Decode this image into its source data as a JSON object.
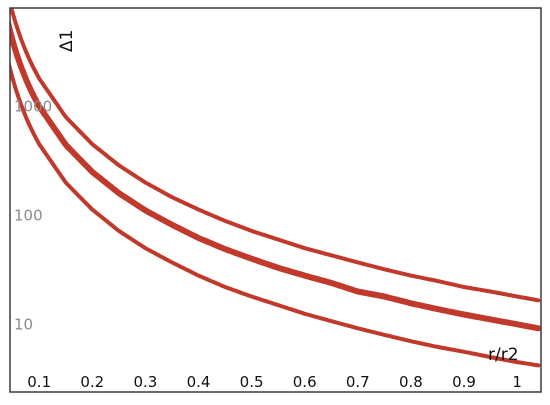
{
  "chart_data": {
    "type": "line",
    "title": "",
    "xlabel": "r/r2",
    "ylabel": "Δ1",
    "xscale": "linear",
    "yscale": "log",
    "xlim": [
      0.045,
      1.045
    ],
    "ylim": [
      3.5,
      8000
    ],
    "xticks": [
      0.1,
      0.2,
      0.3,
      0.4,
      0.5,
      0.6,
      0.7,
      0.8,
      0.9,
      1
    ],
    "xtick_labels": [
      "0.1",
      "0.2",
      "0.3",
      "0.4",
      "0.5",
      "0.6",
      "0.7",
      "0.8",
      "0.9",
      "1"
    ],
    "yticks": [
      10,
      100,
      1000
    ],
    "ytick_labels": [
      "10",
      "100",
      "1000"
    ],
    "grid": false,
    "legend": "none",
    "color": "#c0392b",
    "series": [
      {
        "x": [
          0.1,
          0.15,
          0.2,
          0.25,
          0.3,
          0.35,
          0.4,
          0.45,
          0.5,
          0.55,
          0.6,
          0.65,
          0.7,
          0.75,
          0.8,
          0.85,
          0.9,
          0.95,
          1.0,
          1.04
        ],
        "y": [
          1800,
          800,
          450,
          288,
          200,
          147,
          113,
          89,
          72,
          60,
          50,
          43,
          37,
          32,
          28,
          25,
          22,
          20,
          18,
          16.6
        ]
      },
      {
        "x": [
          0.1,
          0.15,
          0.2,
          0.25,
          0.3,
          0.35,
          0.4,
          0.45,
          0.5,
          0.55,
          0.6,
          0.65,
          0.7,
          0.75,
          0.8,
          0.85,
          0.9,
          0.95,
          1.0,
          1.04
        ],
        "y": [
          1000,
          444,
          250,
          160,
          111,
          82,
          62,
          49,
          40,
          33,
          28,
          24,
          20,
          18,
          15.6,
          13.8,
          12.3,
          11.1,
          10,
          9.2
        ]
      },
      {
        "x": [
          0.1,
          0.15,
          0.2,
          0.25,
          0.3,
          0.35,
          0.4,
          0.45,
          0.5,
          0.55,
          0.6,
          0.65,
          0.7,
          0.75,
          0.8,
          0.85,
          0.9,
          0.95,
          1.0,
          1.04
        ],
        "y": [
          450,
          200,
          113,
          72,
          50,
          37,
          28,
          22,
          18,
          15,
          12.5,
          10.7,
          9.2,
          8.0,
          7.0,
          6.2,
          5.6,
          5.0,
          4.5,
          4.2
        ]
      }
    ]
  }
}
